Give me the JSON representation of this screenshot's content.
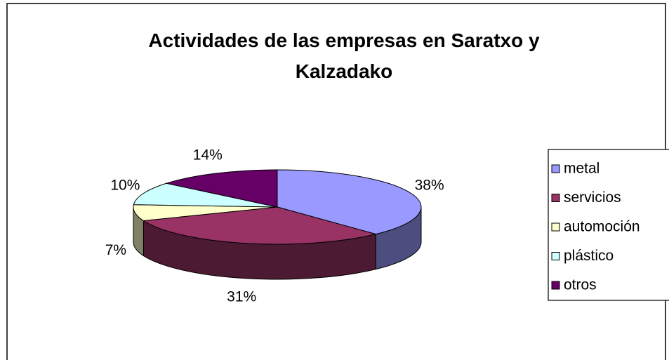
{
  "chart_data": {
    "type": "pie3d",
    "title": "Actividades de las empresas en Saratxo y Kalzadako",
    "categories": [
      "metal",
      "servicios",
      "automoción",
      "plástico",
      "otros"
    ],
    "values": [
      38,
      31,
      7,
      10,
      14
    ],
    "value_labels": [
      "38%",
      "31%",
      "7%",
      "10%",
      "14%"
    ],
    "colors": [
      "#9999ff",
      "#993366",
      "#ffffcc",
      "#ccffff",
      "#660066"
    ],
    "legend": "right"
  }
}
